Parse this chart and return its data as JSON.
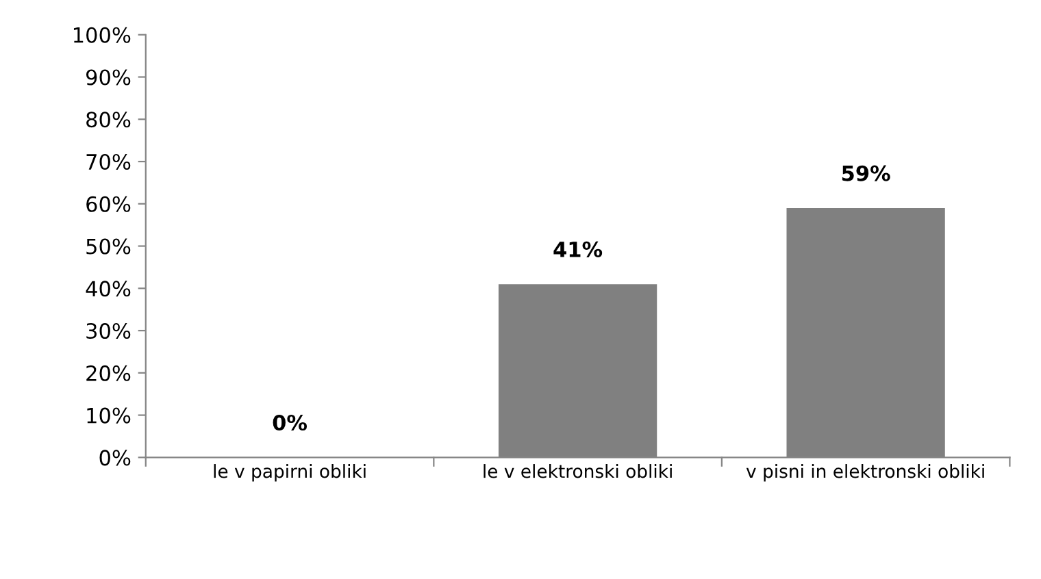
{
  "chart_data": {
    "type": "bar",
    "categories": [
      "le v papirni obliki",
      "le v elektronski obliki",
      "v pisni in elektronski obliki"
    ],
    "values": [
      0,
      41,
      59
    ],
    "value_labels": [
      "0%",
      "41%",
      "59%"
    ],
    "color": "#808080",
    "ylim": [
      0,
      100
    ],
    "yticks": [
      {
        "value": 0,
        "label": "0%"
      },
      {
        "value": 10,
        "label": "10%"
      },
      {
        "value": 20,
        "label": "20%"
      },
      {
        "value": 30,
        "label": "30%"
      },
      {
        "value": 40,
        "label": "40%"
      },
      {
        "value": 50,
        "label": "50%"
      },
      {
        "value": 60,
        "label": "60%"
      },
      {
        "value": 70,
        "label": "70%"
      },
      {
        "value": 80,
        "label": "80%"
      },
      {
        "value": 90,
        "label": "90%"
      },
      {
        "value": 100,
        "label": "100%"
      }
    ],
    "grid": false
  }
}
